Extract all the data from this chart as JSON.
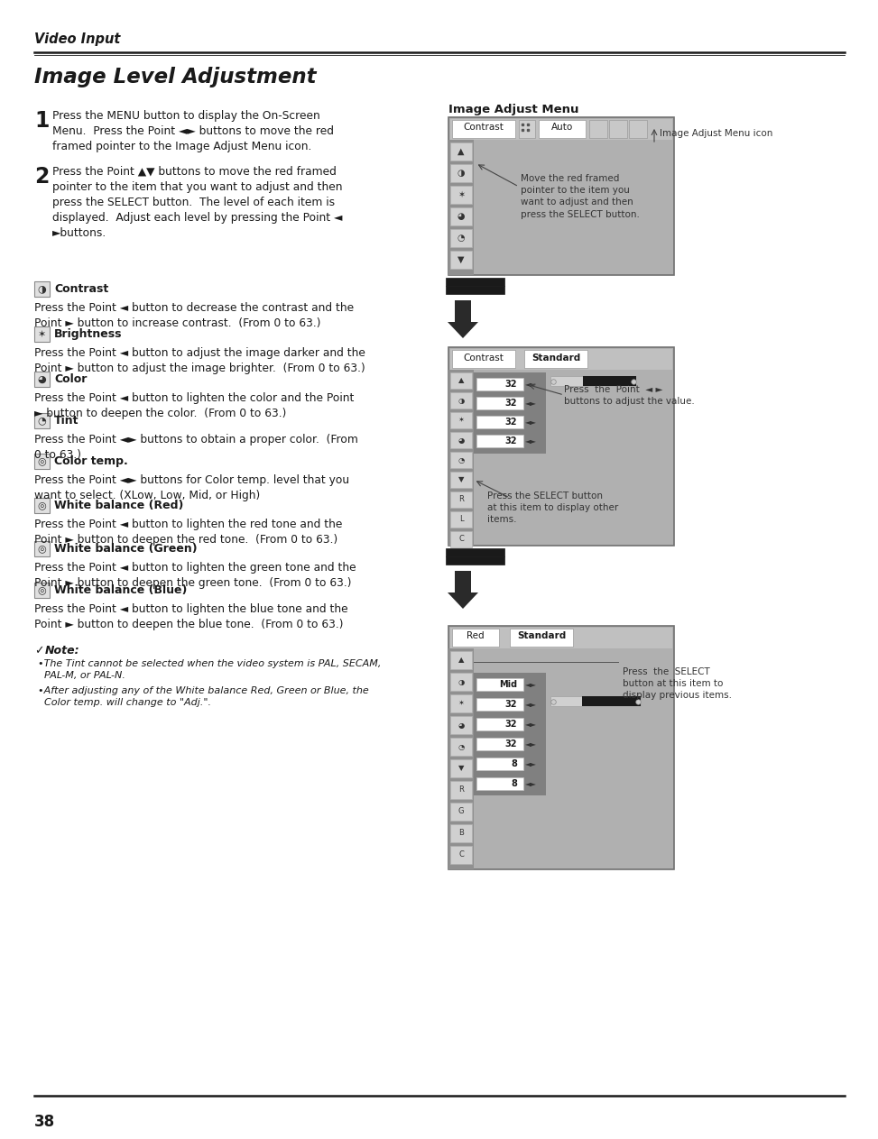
{
  "page_bg": "#ffffff",
  "header_text": "Video Input",
  "title": "Image Level Adjustment",
  "section1_text": "Press the MENU button to display the On-Screen\nMenu.  Press the Point ◄► buttons to move the red\nframed pointer to the Image Adjust Menu icon.",
  "section2_text": "Press the Point ▲▼ buttons to move the red framed\npointer to the item that you want to adjust and then\npress the SELECT button.  The level of each item is\ndisplayed.  Adjust each level by pressing the Point ◄\n►buttons.",
  "contrast_title": "Contrast",
  "contrast_text": "Press the Point ◄ button to decrease the contrast and the\nPoint ► button to increase contrast.  (From 0 to 63.)",
  "brightness_title": "Brightness",
  "brightness_text": "Press the Point ◄ button to adjust the image darker and the\nPoint ► button to adjust the image brighter.  (From 0 to 63.)",
  "color_title": "Color",
  "color_text": "Press the Point ◄ button to lighten the color and the Point\n► button to deepen the color.  (From 0 to 63.)",
  "tint_title": "Tint",
  "tint_text": "Press the Point ◄► buttons to obtain a proper color.  (From\n0 to 63.)",
  "colortemp_title": "Color temp.",
  "colortemp_text": "Press the Point ◄► buttons for Color temp. level that you\nwant to select. (XLow, Low, Mid, or High)",
  "wb_red_title": "White balance (Red)",
  "wb_red_text": "Press the Point ◄ button to lighten the red tone and the\nPoint ► button to deepen the red tone.  (From 0 to 63.)",
  "wb_green_title": "White balance (Green)",
  "wb_green_text": "Press the Point ◄ button to lighten the green tone and the\nPoint ► button to deepen the green tone.  (From 0 to 63.)",
  "wb_blue_title": "White balance (Blue)",
  "wb_blue_text": "Press the Point ◄ button to lighten the blue tone and the\nPoint ► button to deepen the blue tone.  (From 0 to 63.)",
  "note_title": "Note:",
  "note_text1": "•The Tint cannot be selected when the video system is PAL, SECAM,\n  PAL-M, or PAL-N.",
  "note_text2": "•After adjusting any of the White balance Red, Green or Blue, the\n  Color temp. will change to \"Adj.\".",
  "img_adjust_menu_label": "Image Adjust Menu",
  "img_menu1_left": "Contrast",
  "img_menu1_right": "Auto",
  "img_menu2_left": "Contrast",
  "img_menu2_right": "Standard",
  "img_menu3_left": "Red",
  "img_menu3_right": "Standard",
  "arrow_label1": "Image Adjust Menu icon",
  "arrow_label2": "Move the red framed\npointer to the item you\nwant to adjust and then\npress the SELECT button.",
  "arrow_label3": "Press  the  Point  ◄ ►\nbuttons to adjust the value.",
  "arrow_label4": "Press the SELECT button\nat this item to display other\nitems.",
  "arrow_label5": "Press  the  SELECT\nbutton at this item to\ndisplay previous items.",
  "page_num": "38"
}
